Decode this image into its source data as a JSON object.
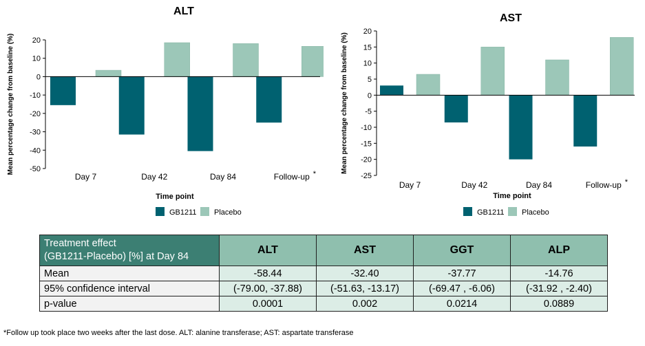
{
  "chart_data": [
    {
      "type": "bar",
      "title": "ALT",
      "xlabel": "Time point",
      "ylabel": "Mean percentage change from baseline (%)",
      "categories": [
        "Day 7",
        "Day 42",
        "Day 84",
        "Follow-up"
      ],
      "category_note": "*",
      "ylim": [
        -50,
        20
      ],
      "yticks": [
        20,
        10,
        0,
        -10,
        -20,
        -30,
        -40,
        -50
      ],
      "series": [
        {
          "name": "GB1211",
          "color": "#006170",
          "values": [
            -15.5,
            -31.5,
            -40.5,
            -25
          ]
        },
        {
          "name": "Placebo",
          "color": "#9cc7b8",
          "values": [
            3.5,
            18.5,
            18,
            16.5
          ]
        }
      ],
      "legend": "bottom"
    },
    {
      "type": "bar",
      "title": "AST",
      "xlabel": "Time point",
      "ylabel": "Mean percentage change from baseline (%)",
      "categories": [
        "Day 7",
        "Day 42",
        "Day 84",
        "Follow-up"
      ],
      "category_note": "*",
      "ylim": [
        -25,
        20
      ],
      "yticks": [
        20,
        15,
        10,
        5,
        0,
        -5,
        -10,
        -15,
        -20,
        -25
      ],
      "series": [
        {
          "name": "GB1211",
          "color": "#006170",
          "values": [
            3,
            -8.5,
            -20,
            -16
          ]
        },
        {
          "name": "Placebo",
          "color": "#9cc7b8",
          "values": [
            6.5,
            15,
            11,
            18
          ]
        }
      ],
      "legend": "bottom"
    }
  ],
  "table": {
    "header_line1": "Treatment effect",
    "header_line2": "(GB1211-Placebo) [%] at Day 84",
    "columns": [
      "ALT",
      "AST",
      "GGT",
      "ALP"
    ],
    "rows": [
      {
        "label": "Mean",
        "values": [
          "-58.44",
          "-32.40",
          "-37.77",
          "-14.76"
        ]
      },
      {
        "label": "95% confidence interval",
        "values": [
          "(-79.00, -37.88)",
          "(-51.63, -13.17)",
          "(-69.47 , -6.06)",
          "(-31.92 , -2.40)"
        ]
      },
      {
        "label": "p-value",
        "values": [
          "0.0001",
          "0.002",
          "0.0214",
          "0.0889"
        ]
      }
    ]
  },
  "footnote": "*Follow up took place two weeks after the last dose. ALT: alanine transferase; AST: aspartate transferase"
}
